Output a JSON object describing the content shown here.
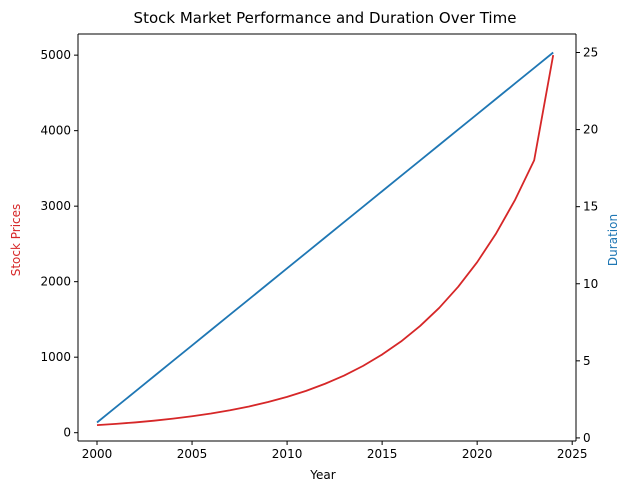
{
  "chart_data": {
    "type": "line",
    "title": "Stock Market Performance and Duration Over Time",
    "xlabel": "Year",
    "y_left_label": "Stock Prices",
    "y_right_label": "Duration",
    "xlim": [
      1999,
      2025.2
    ],
    "y_left_lim": [
      -110,
      5280
    ],
    "y_right_lim": [
      -0.2,
      26.2
    ],
    "x_ticks": [
      2000,
      2005,
      2010,
      2015,
      2020,
      2025
    ],
    "y_left_ticks": [
      0,
      1000,
      2000,
      3000,
      4000,
      5000
    ],
    "y_right_ticks": [
      0,
      5,
      10,
      15,
      20,
      25
    ],
    "grid": false,
    "colors": {
      "left_axis": "#d62728",
      "right_axis": "#1f77b4"
    },
    "x": [
      2000,
      2001,
      2002,
      2003,
      2004,
      2005,
      2006,
      2007,
      2008,
      2009,
      2010,
      2011,
      2012,
      2013,
      2014,
      2015,
      2016,
      2017,
      2018,
      2019,
      2020,
      2021,
      2022,
      2023,
      2024
    ],
    "series": [
      {
        "axis": "left",
        "color": "#d62728",
        "values": [
          100,
          117,
          136,
          159,
          186,
          218,
          254,
          297,
          347,
          406,
          474,
          554,
          648,
          757,
          885,
          1035,
          1209,
          1414,
          1652,
          1932,
          2258,
          2640,
          3086,
          3608,
          5000
        ]
      },
      {
        "axis": "right",
        "color": "#1f77b4",
        "values": [
          1,
          2,
          3,
          4,
          5,
          6,
          7,
          8,
          9,
          10,
          11,
          12,
          13,
          14,
          15,
          16,
          17,
          18,
          19,
          20,
          21,
          22,
          23,
          24,
          25
        ]
      }
    ]
  }
}
